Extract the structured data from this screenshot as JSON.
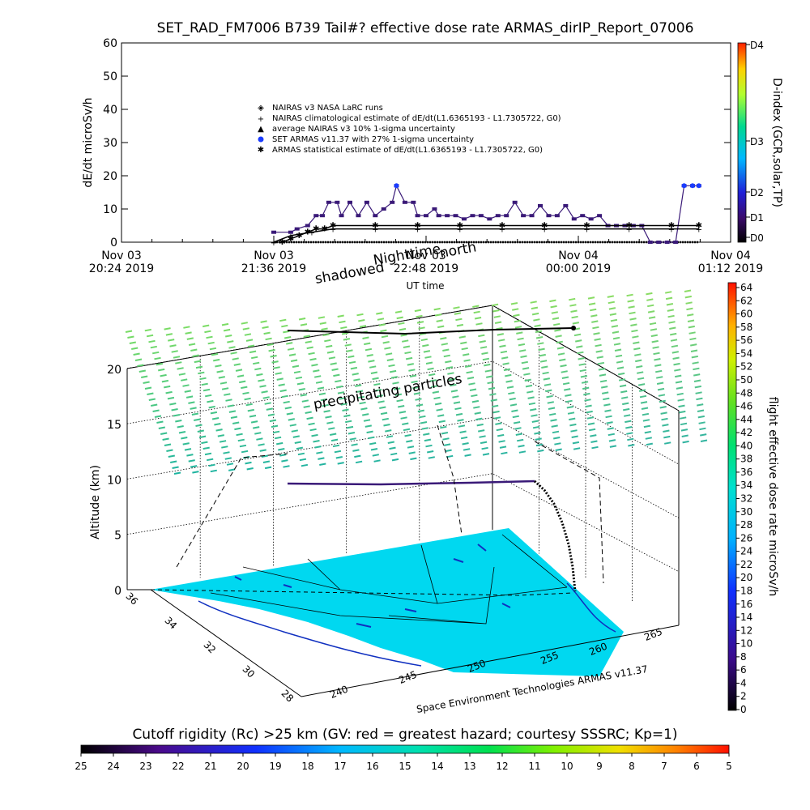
{
  "title": "SET_RAD_FM7006  B739 Tail#? effective dose rate ARMAS_dirIP_Report_07006",
  "colors": {
    "record_purple": "#3a1a78",
    "nairas_black": "#000000",
    "point_blue": "#1a3cff",
    "map_cyan": "#00d8f0",
    "precip_green": "#3ee08a"
  },
  "chart_data": [
    {
      "type": "line",
      "ylabel": "dE/dt microSv/h",
      "xlabel": "UT time",
      "ylim": [
        0,
        60
      ],
      "y_ticks": [
        "0",
        "10",
        "20",
        "30",
        "40",
        "50",
        "60"
      ],
      "x_ticks": [
        {
          "date": "Nov 03",
          "time": "20:24 2019"
        },
        {
          "date": "Nov 03",
          "time": "21:36 2019"
        },
        {
          "date": "Nov 03",
          "time": "22:48 2019"
        },
        {
          "date": "Nov 04",
          "time": "00:00 2019"
        },
        {
          "date": "Nov 04",
          "time": "01:12 2019"
        }
      ],
      "xlim_minutes_after_2024UT": [
        0,
        288
      ],
      "legend": [
        {
          "symbol": "diamond",
          "text": "NAIRAS v3 NASA LaRC runs"
        },
        {
          "symbol": "plus",
          "text": "NAIRAS climatological estimate of dE/dt(L1.6365193 - L1.7305722, G0)"
        },
        {
          "symbol": "triangle",
          "text": "average NAIRAS v3 10% 1-sigma uncertainty"
        },
        {
          "symbol": "blue-dot",
          "text": "SET ARMAS v11.37 with 27% 1-sigma uncertainty"
        },
        {
          "symbol": "asterisk",
          "text": "ARMAS statistical estimate of dE/dt(L1.6365193 - L1.7305722, G0)"
        }
      ],
      "right_axis": {
        "label": "D-index (GCR,solar,TP)",
        "ticks": [
          "D0",
          "D1",
          "D2",
          "D3",
          "D4"
        ]
      },
      "series": [
        {
          "name": "SET ARMAS v11.37 with 27% 1-sigma uncertainty",
          "x": [
            72,
            80,
            83,
            88,
            92,
            95,
            98,
            102,
            104,
            108,
            112,
            116,
            120,
            124,
            128,
            130,
            134,
            138,
            140,
            144,
            148,
            150,
            154,
            158,
            162,
            166,
            170,
            174,
            178,
            182,
            186,
            190,
            194,
            198,
            202,
            206,
            210,
            214,
            218,
            222,
            226,
            230,
            234,
            238,
            242,
            246,
            250,
            254,
            258,
            262,
            266,
            270,
            273
          ],
          "y": [
            3,
            3,
            4,
            5,
            8,
            8,
            12,
            12,
            8,
            12,
            8,
            12,
            8,
            10,
            12,
            17,
            12,
            12,
            8,
            8,
            10,
            8,
            8,
            8,
            7,
            8,
            8,
            7,
            8,
            8,
            12,
            8,
            8,
            11,
            8,
            8,
            11,
            7,
            8,
            7,
            8,
            5,
            5,
            5,
            5,
            5,
            0,
            0,
            0,
            0,
            17,
            17,
            17
          ]
        },
        {
          "name": "ARMAS statistical estimate of dE/dt(L1.6365193 - L1.7305722, G0)",
          "x": [
            76,
            80,
            84,
            88,
            92,
            96,
            100,
            120,
            140,
            160,
            180,
            200,
            220,
            240,
            260,
            273
          ],
          "y": [
            0,
            1,
            2,
            3,
            4,
            4,
            5,
            5,
            5,
            5,
            5,
            5,
            5,
            5,
            5,
            5
          ]
        },
        {
          "name": "NAIRAS climatological estimate of dE/dt(L1.6365193 - L1.7305722, G0)",
          "x": [
            72,
            80,
            90,
            100,
            120,
            140,
            160,
            180,
            200,
            220,
            240,
            260,
            273
          ],
          "y": [
            0,
            2,
            3,
            4,
            4,
            4,
            4,
            4,
            4,
            4,
            4,
            4,
            4
          ]
        }
      ]
    },
    {
      "type": "scatter",
      "ylabel": "Altitude (km)",
      "z_ticks": [
        "0",
        "5",
        "10",
        "15",
        "20"
      ],
      "lat_ticks": [
        "36",
        "34",
        "32",
        "30",
        "28"
      ],
      "lon_ticks": [
        "240",
        "245",
        "250",
        "255",
        "260"
      ],
      "lon_tick_labels_shown": [
        "240",
        "245",
        "250",
        "255",
        "260",
        "265"
      ],
      "annotations": [
        "shadowed",
        "Nighttime",
        "north",
        "precipitating particles"
      ],
      "credit": "Space Environment Technologies ARMAS v11.37",
      "right_colorbar": {
        "label": "flight effective dose rate microSv/h",
        "ticks": [
          "0",
          "2",
          "4",
          "6",
          "8",
          "10",
          "12",
          "14",
          "16",
          "18",
          "20",
          "22",
          "24",
          "26",
          "28",
          "30",
          "32",
          "34",
          "36",
          "38",
          "40",
          "42",
          "44",
          "46",
          "48",
          "50",
          "52",
          "54",
          "56",
          "58",
          "60",
          "62",
          "64"
        ]
      },
      "bottom_colorbar": {
        "label": "Cutoff rigidity (Rc) >25 km (GV: red = greatest hazard; courtesy SSSRC; Kp=1)",
        "ticks": [
          "25",
          "24",
          "23",
          "22",
          "21",
          "20",
          "19",
          "18",
          "17",
          "16",
          "15",
          "14",
          "13",
          "12",
          "11",
          "10",
          "9",
          "8",
          "7",
          "6",
          "5"
        ]
      }
    }
  ]
}
